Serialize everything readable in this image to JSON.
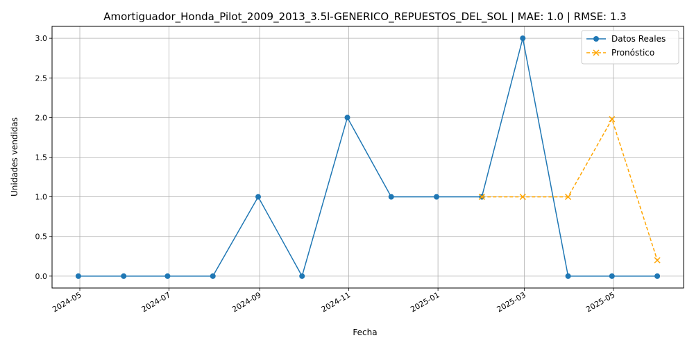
{
  "chart_data": {
    "type": "line",
    "title": "Amortiguador_Honda_Pilot_2009_2013_3.5l-GENERICO_REPUESTOS_DEL_SOL | MAE: 1.0 | RMSE: 1.3",
    "xlabel": "Fecha",
    "ylabel": "Unidades vendidas",
    "ylim": [
      -0.15,
      3.15
    ],
    "grid": true,
    "legend_position": "top-right",
    "x_ticks": [
      "2024-05",
      "2024-07",
      "2024-09",
      "2024-11",
      "2025-01",
      "2025-03",
      "2025-05"
    ],
    "x_tick_dates": [
      "2024-05-01",
      "2024-07-01",
      "2024-09-01",
      "2024-11-01",
      "2025-01-01",
      "2025-03-01",
      "2025-05-01"
    ],
    "y_ticks": [
      "0.0",
      "0.5",
      "1.0",
      "1.5",
      "2.0",
      "2.5",
      "3.0"
    ],
    "y_tick_values": [
      0,
      0.5,
      1.0,
      1.5,
      2.0,
      2.5,
      3.0
    ],
    "series": [
      {
        "name": "Datos Reales",
        "color": "#1f77b4",
        "marker": "circle",
        "line": "solid",
        "x": [
          "2024-04-30",
          "2024-05-31",
          "2024-06-30",
          "2024-07-31",
          "2024-08-31",
          "2024-09-30",
          "2024-10-31",
          "2024-11-30",
          "2024-12-31",
          "2025-01-31",
          "2025-02-28",
          "2025-03-31",
          "2025-04-30",
          "2025-05-31"
        ],
        "values": [
          0,
          0,
          0,
          0,
          1,
          0,
          2,
          1,
          1,
          1,
          3,
          0,
          0,
          0
        ]
      },
      {
        "name": "Pronóstico",
        "color": "#ffa500",
        "marker": "x",
        "line": "dashed",
        "x": [
          "2025-01-31",
          "2025-02-28",
          "2025-03-31",
          "2025-04-30",
          "2025-05-31"
        ],
        "values": [
          1,
          1,
          1,
          1.98,
          0.2
        ]
      }
    ]
  }
}
